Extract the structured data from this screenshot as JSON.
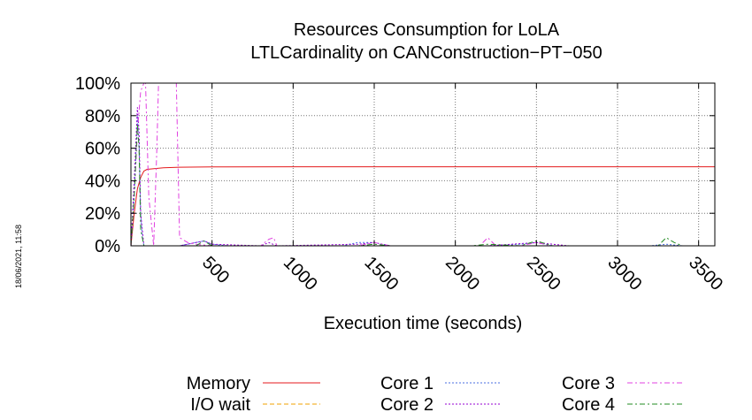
{
  "chart_data": {
    "type": "line",
    "title": "Resources Consumption for LoLA",
    "subtitle": "LTLCardinality on CANConstruction−PT−050",
    "xlabel": "Execution time (seconds)",
    "ylabel": "",
    "xlim": [
      0,
      3600
    ],
    "ylim": [
      0,
      100
    ],
    "x_ticks": [
      500,
      1000,
      1500,
      2000,
      2500,
      3000,
      3500
    ],
    "x_tick_labels": [
      "500",
      "1000",
      "1500",
      "2000",
      "2500",
      "3000",
      "3500"
    ],
    "y_ticks": [
      0,
      20,
      40,
      60,
      80,
      100
    ],
    "y_tick_labels": [
      "0%",
      "20%",
      "40%",
      "60%",
      "80%",
      "100%"
    ],
    "grid": true,
    "legend_position": "bottom",
    "series": [
      {
        "name": "Memory",
        "color": "#e41a1c",
        "dash": "solid",
        "x": [
          0,
          20,
          40,
          60,
          80,
          100,
          150,
          200,
          300,
          500,
          1000,
          1500,
          2000,
          2500,
          3000,
          3500,
          3600
        ],
        "y": [
          0,
          20,
          35,
          42,
          46,
          47,
          47.5,
          48,
          48.3,
          48.5,
          48.6,
          48.6,
          48.6,
          48.6,
          48.6,
          48.6,
          48.6
        ]
      },
      {
        "name": "I/O wait",
        "color": "#f0a000",
        "dash": "dashed",
        "x": [
          0,
          3600
        ],
        "y": [
          0,
          0
        ]
      },
      {
        "name": "Core 1",
        "color": "#4a6ee0",
        "dash": "dotted",
        "x": [
          0,
          20,
          40,
          50,
          60,
          70,
          80,
          100,
          120,
          300,
          400,
          450,
          500,
          600,
          700,
          800,
          900,
          1000,
          1300,
          1400,
          1500,
          1600,
          2200,
          2400,
          2500,
          2600,
          3200,
          3300,
          3400,
          3600
        ],
        "y": [
          0,
          30,
          80,
          60,
          20,
          5,
          0,
          0,
          0,
          0,
          2,
          3,
          1,
          0,
          0,
          0,
          0,
          0,
          0,
          2,
          2,
          0,
          0,
          1,
          2,
          0,
          0,
          1,
          0,
          0
        ]
      },
      {
        "name": "Core 2",
        "color": "#9400d3",
        "dash": "dotted",
        "x": [
          0,
          20,
          40,
          50,
          60,
          80,
          100,
          300,
          400,
          450,
          500,
          800,
          850,
          900,
          1400,
          1500,
          1550,
          1600,
          2200,
          2500,
          2600,
          2700,
          3600
        ],
        "y": [
          0,
          40,
          85,
          70,
          20,
          0,
          0,
          0,
          2,
          3,
          1,
          0,
          2,
          0,
          1,
          2,
          1,
          0,
          0,
          2,
          1,
          0,
          0
        ]
      },
      {
        "name": "Core 3",
        "color": "#e040e0",
        "dash": "dashdot",
        "x": [
          0,
          20,
          40,
          60,
          80,
          90,
          110,
          140,
          160,
          170,
          180,
          190,
          210,
          280,
          300,
          350,
          400,
          500,
          800,
          850,
          880,
          900,
          1400,
          1500,
          1600,
          2150,
          2200,
          2250,
          2400,
          2500,
          2600,
          3600
        ],
        "y": [
          0,
          30,
          70,
          95,
          100,
          100,
          30,
          0,
          60,
          100,
          100,
          100,
          100,
          100,
          5,
          2,
          1,
          0,
          0,
          4,
          5,
          0,
          0,
          2,
          0,
          0,
          5,
          0,
          0,
          2,
          0,
          0
        ]
      },
      {
        "name": "Core 4",
        "color": "#228b22",
        "dash": "dashdot",
        "x": [
          0,
          20,
          40,
          50,
          60,
          80,
          100,
          400,
          450,
          500,
          1400,
          1500,
          1600,
          2100,
          2200,
          2400,
          2500,
          2600,
          3250,
          3300,
          3350,
          3400,
          3600
        ],
        "y": [
          0,
          30,
          75,
          60,
          10,
          0,
          0,
          0,
          3,
          0,
          0,
          1,
          0,
          0,
          1,
          0,
          3,
          0,
          0,
          5,
          2,
          0,
          0
        ]
      }
    ]
  },
  "side_label": "18/06/2021, 11:58"
}
